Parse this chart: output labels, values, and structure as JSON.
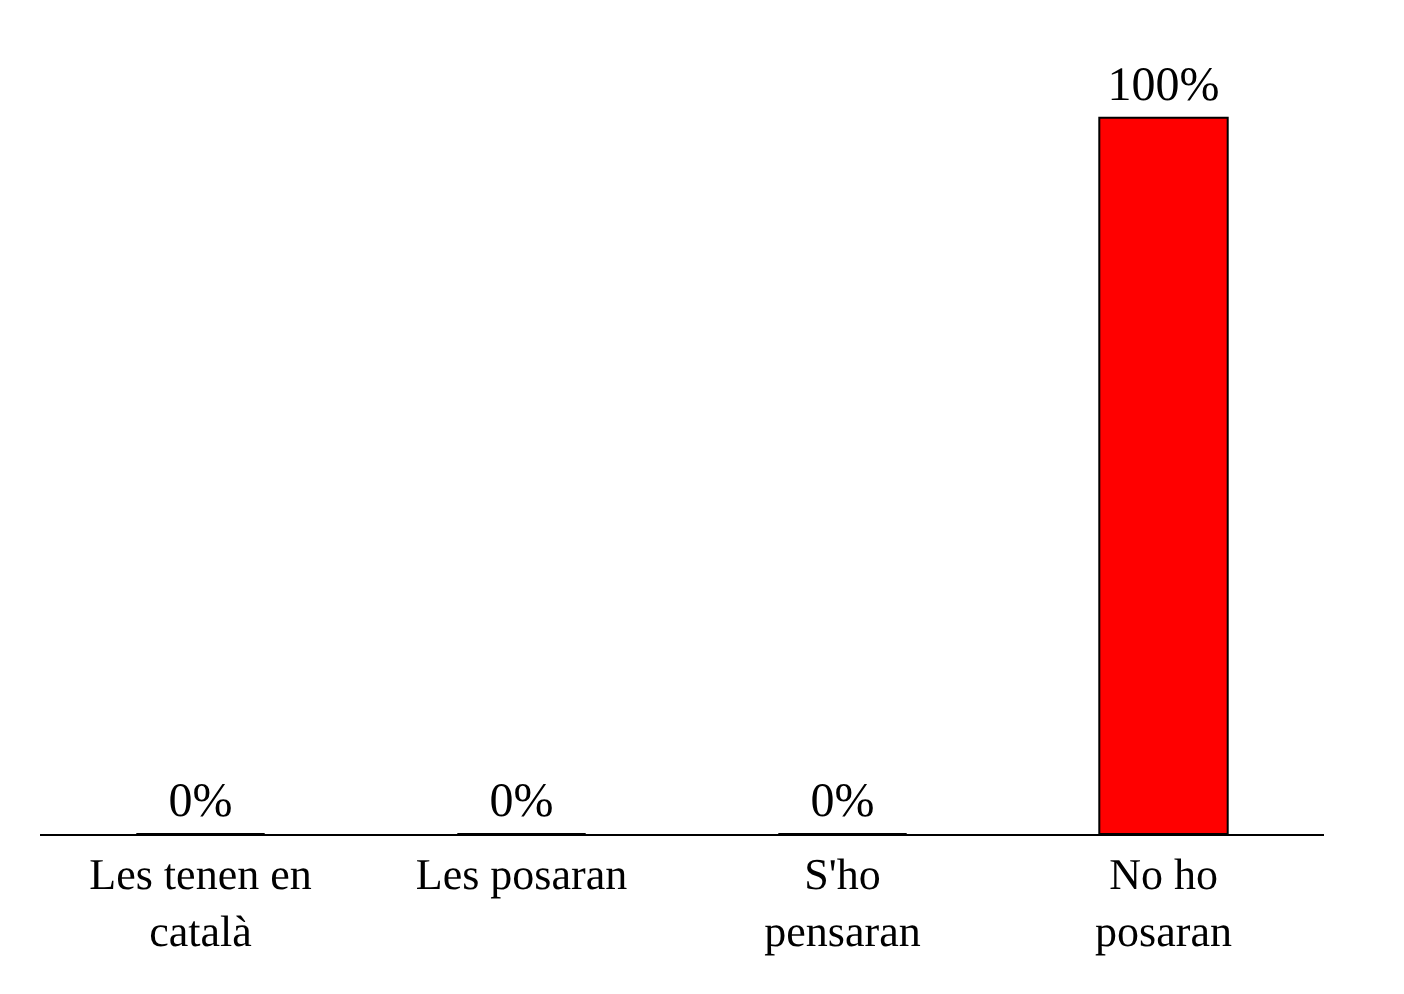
{
  "chart_data": {
    "type": "bar",
    "categories": [
      "Les tenen en català",
      "Les posaran",
      "S'ho pensaran",
      "No ho posaran"
    ],
    "values": [
      0,
      0,
      0,
      100
    ],
    "colors": [
      "#00cc00",
      "#99cc99",
      "#0099cc",
      "#ff0000"
    ],
    "value_labels": [
      "0%",
      "0%",
      "0%",
      "100%"
    ],
    "legend": false
  }
}
